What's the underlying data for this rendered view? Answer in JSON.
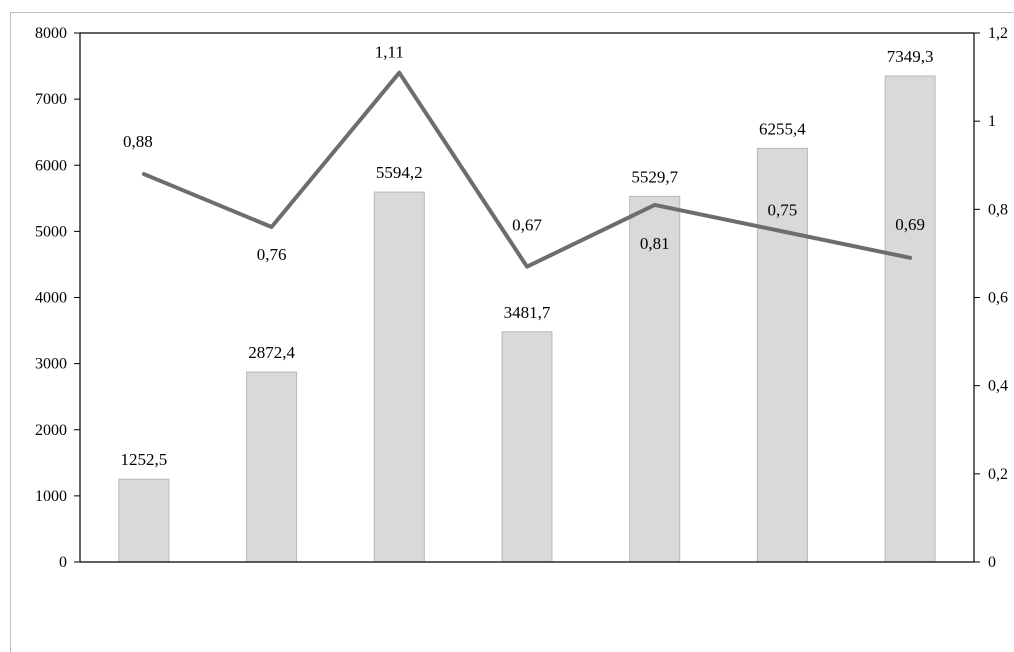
{
  "chart_data": {
    "type": "bar",
    "categories": [
      "",
      "",
      "",
      "",
      "",
      "",
      ""
    ],
    "series": [
      {
        "type": "bar",
        "axis": "left",
        "values": [
          1252.5,
          2872.4,
          5594.2,
          3481.7,
          5529.7,
          6255.4,
          7349.3
        ],
        "labels": [
          "1252,5",
          "2872,4",
          "5594,2",
          "3481,7",
          "5529,7",
          "6255,4",
          "7349,3"
        ],
        "color": "#d9d9d9"
      },
      {
        "type": "line",
        "axis": "right",
        "values": [
          0.88,
          0.76,
          1.11,
          0.67,
          0.81,
          0.75,
          0.69
        ],
        "labels": [
          "0,88",
          "0,76",
          "1,11",
          "0,67",
          "0,81",
          "0,75",
          "0,69"
        ],
        "color": "#6d6d6d"
      }
    ],
    "y_left": {
      "lim": [
        0,
        8000
      ],
      "ticks": [
        0,
        1000,
        2000,
        3000,
        4000,
        5000,
        6000,
        7000,
        8000
      ],
      "tick_labels": [
        "0",
        "1000",
        "2000",
        "3000",
        "4000",
        "5000",
        "6000",
        "7000",
        "8000"
      ]
    },
    "y_right": {
      "lim": [
        0,
        1.2
      ],
      "ticks": [
        0,
        0.2,
        0.4,
        0.6,
        0.8,
        1.0,
        1.2
      ],
      "tick_labels": [
        "0",
        "0,2",
        "0,4",
        "0,6",
        "0,8",
        "1",
        "1,2"
      ]
    },
    "grid": false,
    "legend": "none"
  }
}
